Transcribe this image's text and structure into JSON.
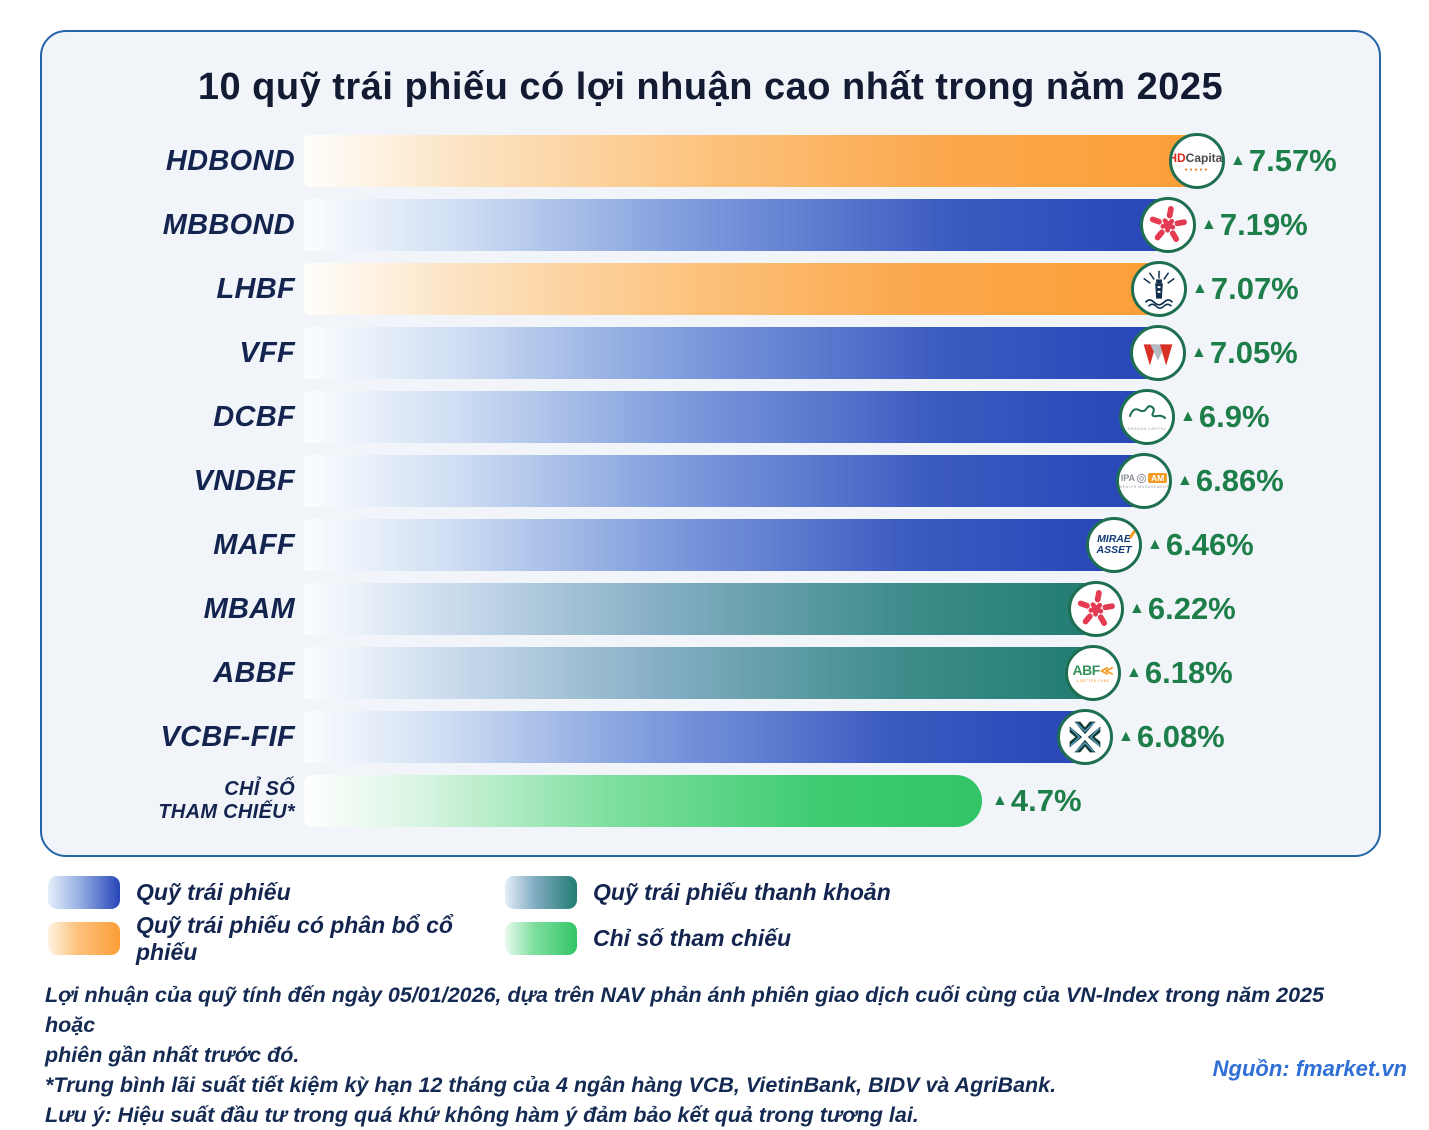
{
  "title": "10 quỹ trái phiếu có lợi nhuận cao nhất trong năm 2025",
  "up_marker": "▲",
  "chart_data": {
    "type": "bar",
    "orientation": "horizontal",
    "unit": "%",
    "grid": false,
    "legend_position": "bottom",
    "categories": [
      "HDBOND",
      "MBBOND",
      "LHBF",
      "VFF",
      "DCBF",
      "VNDBF",
      "MAFF",
      "MBAM",
      "ABBF",
      "VCBF-FIF",
      "CHỈ SỐ THAM CHIẾU*"
    ],
    "values": [
      7.57,
      7.19,
      7.07,
      7.05,
      6.9,
      6.86,
      6.46,
      6.22,
      6.18,
      6.08,
      4.7
    ],
    "rows": [
      {
        "label": "HDBOND",
        "value": 7.57,
        "display": "7.57%",
        "type": "bond-equity",
        "logo": "hdcapital-logo"
      },
      {
        "label": "MBBOND",
        "value": 7.19,
        "display": "7.19%",
        "type": "bond",
        "logo": "mb-star-logo"
      },
      {
        "label": "LHBF",
        "value": 7.07,
        "display": "7.07%",
        "type": "bond-equity",
        "logo": "lighthouse-logo"
      },
      {
        "label": "VFF",
        "value": 7.05,
        "display": "7.05%",
        "type": "bond",
        "logo": "vinafund-logo"
      },
      {
        "label": "DCBF",
        "value": 6.9,
        "display": "6.9%",
        "type": "bond",
        "logo": "dragon-capital-logo"
      },
      {
        "label": "VNDBF",
        "value": 6.86,
        "display": "6.86%",
        "type": "bond",
        "logo": "ipaam-logo"
      },
      {
        "label": "MAFF",
        "value": 6.46,
        "display": "6.46%",
        "type": "bond",
        "logo": "mirae-asset-logo"
      },
      {
        "label": "MBAM",
        "value": 6.22,
        "display": "6.22%",
        "type": "liquid",
        "logo": "mb-star-logo"
      },
      {
        "label": "ABBF",
        "value": 6.18,
        "display": "6.18%",
        "type": "liquid",
        "logo": "abf-logo"
      },
      {
        "label": "VCBF-FIF",
        "value": 6.08,
        "display": "6.08%",
        "type": "bond",
        "logo": "vcbf-logo"
      },
      {
        "label": "CHỈ SỐ THAM CHIẾU*",
        "label_lines": [
          "CHỈ SỐ",
          "THAM CHIẾU*"
        ],
        "value": 4.7,
        "display": "4.7%",
        "type": "reference",
        "logo": null
      }
    ]
  },
  "legend": {
    "items": [
      {
        "label": "Quỹ trái phiếu",
        "type": "bond",
        "color": "#2746b8"
      },
      {
        "label": "Quỹ trái phiếu thanh khoản",
        "type": "liquid",
        "color": "#217c72"
      },
      {
        "label": "Quỹ trái phiếu có phân bổ cổ phiếu",
        "type": "bond-equity",
        "color": "#fb9e37"
      },
      {
        "label": "Chỉ số tham chiếu",
        "type": "reference",
        "color": "#31c566"
      }
    ]
  },
  "logo_texts": {
    "hdcapital": {
      "hd": "HD",
      "capital": "Capital"
    },
    "ipaam": {
      "ipa": "IPA",
      "am": "AM",
      "sub": "WEALTH MANAGEMENT"
    },
    "mirae": {
      "line1": "MIRAE",
      "line2": "ASSET"
    },
    "abf": {
      "abf": "ABF",
      "chevrons": "≪",
      "sub": "A BETTER FUND"
    },
    "dragon": {
      "sub": "DRAGON CAPITAL"
    }
  },
  "footnotes": [
    "Lợi nhuận của quỹ tính đến ngày 05/01/2026, dựa trên NAV phản ánh phiên giao dịch cuối cùng của VN-Index trong năm 2025 hoặc",
    "phiên gần nhất trước đó.",
    "*Trung bình lãi suất tiết kiệm kỳ hạn 12 tháng của 4 ngân hàng VCB, VietinBank, BIDV và AgriBank.",
    "Lưu ý: Hiệu suất đầu tư trong quá khứ không hàm ý đảm bảo kết quả trong tương lai."
  ],
  "source": "Nguồn: fmarket.vn",
  "colors": {
    "card_background": "#f1f4f9",
    "card_border": "#2565a8",
    "bond_blue": "#2746b8",
    "bond_equity_orange": "#fb9e37",
    "liquid_teal": "#217c72",
    "reference_green": "#31c566",
    "value_green": "#1e7e49",
    "label_navy": "#13244f",
    "logo_ring_green": "#1e6f50",
    "source_blue": "#2f6fd6"
  }
}
